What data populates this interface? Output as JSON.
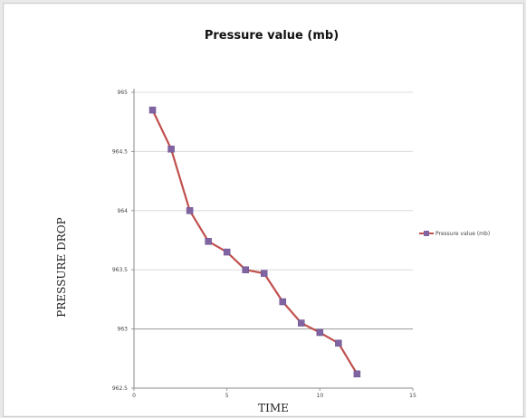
{
  "chart_data": {
    "type": "line",
    "title": "Pressure value (mb)",
    "xlabel": "TIME",
    "ylabel": "PRESSURE DROP",
    "ylim": [
      962.5,
      965
    ],
    "yticks": [
      962.5,
      963,
      963.5,
      964,
      964.5,
      965
    ],
    "ytick_labels": [
      "962.5",
      "963",
      "963.5",
      "964",
      "964.5",
      "965"
    ],
    "xlim": [
      0,
      15
    ],
    "xticks": [
      0,
      5,
      10,
      15
    ],
    "xtick_labels": [
      "0",
      "5",
      "10",
      "15"
    ],
    "grid": "horizontal",
    "legend_position": "right",
    "series": [
      {
        "name": "Pressure value (mb)",
        "color": "#c0504d",
        "marker_color": "#8064a2",
        "x": [
          1,
          2,
          3,
          4,
          5,
          6,
          7,
          8,
          9,
          10,
          11,
          12
        ],
        "y": [
          964.85,
          964.52,
          964.0,
          963.74,
          963.65,
          963.5,
          963.47,
          963.23,
          963.05,
          962.97,
          962.88,
          962.62
        ]
      }
    ]
  }
}
